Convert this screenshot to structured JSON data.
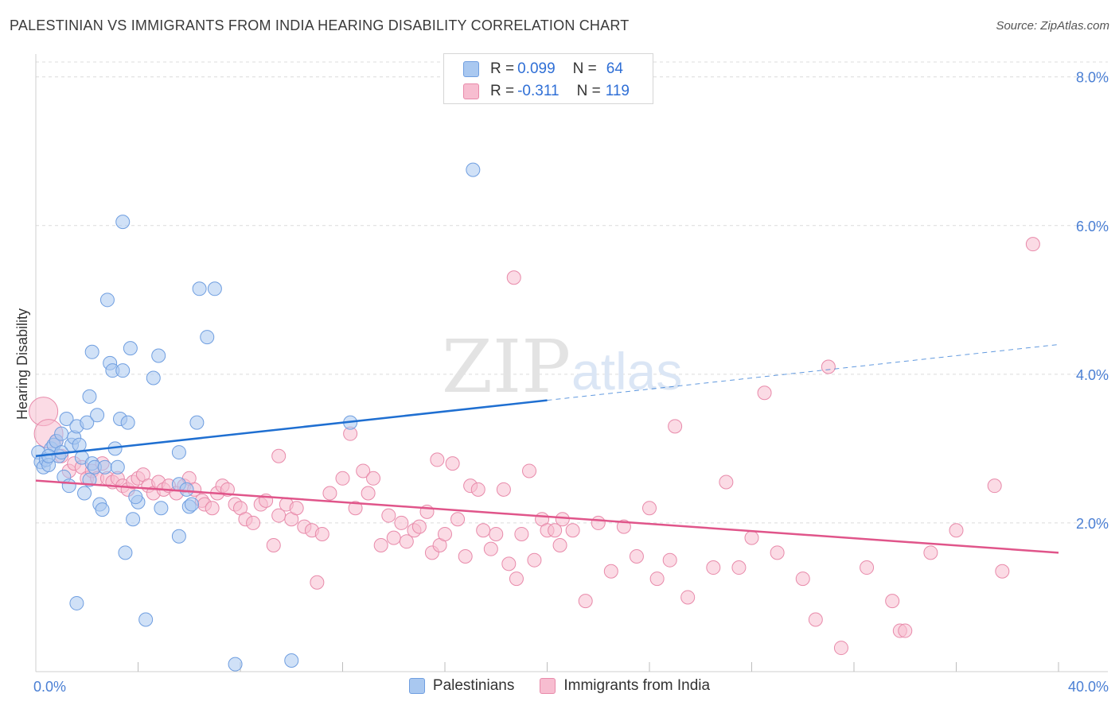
{
  "header": {
    "title": "PALESTINIAN VS IMMIGRANTS FROM INDIA HEARING DISABILITY CORRELATION CHART",
    "source": "Source: ZipAtlas.com"
  },
  "watermark": {
    "zip": "ZIP",
    "atlas": "atlas"
  },
  "legend": {
    "rows": [
      {
        "r_label": "R =",
        "r_value": "0.099",
        "n_label": "N =",
        "n_value": "64"
      },
      {
        "r_label": "R =",
        "r_value": "-0.311",
        "n_label": "N =",
        "n_value": "119"
      }
    ]
  },
  "bottom_legend": {
    "series1": "Palestinians",
    "series2": "Immigrants from India"
  },
  "colors": {
    "blue_fill": "#a9c8f0",
    "blue_stroke": "#6f9ee0",
    "blue_line": "#1f6fd1",
    "pink_fill": "#f7bdd0",
    "pink_stroke": "#e88aaa",
    "pink_line": "#e0558a",
    "axis_label": "#4a7fd4",
    "grid": "#dcdcdc"
  },
  "chart_data": {
    "type": "scatter",
    "title": "PALESTINIAN VS IMMIGRANTS FROM INDIA HEARING DISABILITY CORRELATION CHART",
    "xlabel": "",
    "ylabel": "Hearing Disability",
    "xlim": [
      0,
      40
    ],
    "ylim": [
      0,
      8.2
    ],
    "x_tick_labels": [
      {
        "value": 0,
        "label": "0.0%"
      },
      {
        "value": 40,
        "label": "40.0%"
      }
    ],
    "y_tick_labels": [
      {
        "value": 2,
        "label": "2.0%"
      },
      {
        "value": 4,
        "label": "4.0%"
      },
      {
        "value": 6,
        "label": "6.0%"
      },
      {
        "value": 8,
        "label": "8.0%"
      }
    ],
    "x_minor_ticks": [
      4,
      8,
      12,
      16,
      20,
      24,
      28,
      32,
      36,
      40
    ],
    "series": [
      {
        "name": "Palestinians",
        "r": 0.099,
        "n": 64,
        "trend": {
          "x0": 0,
          "y0": 2.9,
          "x1": 20,
          "y1": 3.65,
          "dashed_to_x": 40,
          "dashed_to_y": 4.4
        },
        "points": [
          [
            0.1,
            2.95
          ],
          [
            0.2,
            2.82
          ],
          [
            0.3,
            2.75
          ],
          [
            0.4,
            2.85
          ],
          [
            0.5,
            2.78
          ],
          [
            0.6,
            3.0
          ],
          [
            0.7,
            3.05
          ],
          [
            0.8,
            3.1
          ],
          [
            0.9,
            2.9
          ],
          [
            1.0,
            3.2
          ],
          [
            1.1,
            2.62
          ],
          [
            1.2,
            3.4
          ],
          [
            1.3,
            2.5
          ],
          [
            1.4,
            3.05
          ],
          [
            1.5,
            3.15
          ],
          [
            1.6,
            3.3
          ],
          [
            1.7,
            3.05
          ],
          [
            1.8,
            2.88
          ],
          [
            1.9,
            2.4
          ],
          [
            2.0,
            3.35
          ],
          [
            2.1,
            2.58
          ],
          [
            2.2,
            2.8
          ],
          [
            2.1,
            3.7
          ],
          [
            2.2,
            4.3
          ],
          [
            2.3,
            2.75
          ],
          [
            2.4,
            3.45
          ],
          [
            2.5,
            2.25
          ],
          [
            2.6,
            2.18
          ],
          [
            2.7,
            2.75
          ],
          [
            2.8,
            5.0
          ],
          [
            2.9,
            4.15
          ],
          [
            3.0,
            4.05
          ],
          [
            3.1,
            3.0
          ],
          [
            3.2,
            2.75
          ],
          [
            3.3,
            3.4
          ],
          [
            3.4,
            4.05
          ],
          [
            3.4,
            6.05
          ],
          [
            3.5,
            1.6
          ],
          [
            3.6,
            3.35
          ],
          [
            3.7,
            4.35
          ],
          [
            3.8,
            2.05
          ],
          [
            4.0,
            2.28
          ],
          [
            4.3,
            0.7
          ],
          [
            4.6,
            3.95
          ],
          [
            4.8,
            4.25
          ],
          [
            4.9,
            2.2
          ],
          [
            5.6,
            2.52
          ],
          [
            5.6,
            1.82
          ],
          [
            5.6,
            2.95
          ],
          [
            5.9,
            2.45
          ],
          [
            6.0,
            2.22
          ],
          [
            6.1,
            2.25
          ],
          [
            6.3,
            3.35
          ],
          [
            6.4,
            5.15
          ],
          [
            6.7,
            4.5
          ],
          [
            7.0,
            5.15
          ],
          [
            7.8,
            0.1
          ],
          [
            10.0,
            0.15
          ],
          [
            12.3,
            3.35
          ],
          [
            17.1,
            6.75
          ],
          [
            1.0,
            2.95
          ],
          [
            0.5,
            2.9
          ],
          [
            3.9,
            2.35
          ],
          [
            1.6,
            0.92
          ]
        ]
      },
      {
        "name": "Immigrants from India",
        "r": -0.311,
        "n": 119,
        "trend": {
          "x0": 0,
          "y0": 2.57,
          "x1": 40,
          "y1": 1.6
        },
        "points": [
          [
            0.3,
            3.5
          ],
          [
            0.5,
            3.2
          ],
          [
            0.8,
            3.1
          ],
          [
            1.0,
            2.9
          ],
          [
            1.3,
            2.7
          ],
          [
            1.5,
            2.8
          ],
          [
            1.8,
            2.75
          ],
          [
            2.0,
            2.6
          ],
          [
            2.2,
            2.7
          ],
          [
            2.4,
            2.6
          ],
          [
            2.6,
            2.8
          ],
          [
            2.8,
            2.6
          ],
          [
            3.0,
            2.55
          ],
          [
            3.2,
            2.6
          ],
          [
            3.4,
            2.5
          ],
          [
            3.6,
            2.45
          ],
          [
            3.8,
            2.55
          ],
          [
            4.0,
            2.6
          ],
          [
            4.2,
            2.65
          ],
          [
            4.4,
            2.5
          ],
          [
            4.6,
            2.4
          ],
          [
            4.8,
            2.55
          ],
          [
            5.0,
            2.45
          ],
          [
            5.2,
            2.5
          ],
          [
            5.5,
            2.4
          ],
          [
            5.8,
            2.5
          ],
          [
            6.0,
            2.6
          ],
          [
            6.2,
            2.45
          ],
          [
            6.5,
            2.3
          ],
          [
            6.6,
            2.25
          ],
          [
            6.9,
            2.2
          ],
          [
            7.1,
            2.4
          ],
          [
            7.3,
            2.5
          ],
          [
            7.5,
            2.45
          ],
          [
            7.8,
            2.25
          ],
          [
            8.0,
            2.2
          ],
          [
            8.2,
            2.05
          ],
          [
            8.5,
            2.0
          ],
          [
            8.8,
            2.25
          ],
          [
            9.0,
            2.3
          ],
          [
            9.3,
            1.7
          ],
          [
            9.5,
            2.1
          ],
          [
            9.8,
            2.25
          ],
          [
            10.0,
            2.05
          ],
          [
            10.2,
            2.2
          ],
          [
            10.5,
            1.95
          ],
          [
            10.8,
            1.9
          ],
          [
            11.0,
            1.2
          ],
          [
            11.2,
            1.85
          ],
          [
            11.5,
            2.4
          ],
          [
            12.0,
            2.6
          ],
          [
            12.3,
            3.2
          ],
          [
            12.5,
            2.2
          ],
          [
            12.8,
            2.7
          ],
          [
            13.0,
            2.4
          ],
          [
            13.2,
            2.6
          ],
          [
            13.5,
            1.7
          ],
          [
            13.8,
            2.1
          ],
          [
            14.0,
            1.8
          ],
          [
            14.3,
            2.0
          ],
          [
            14.5,
            1.75
          ],
          [
            14.8,
            1.9
          ],
          [
            15.0,
            1.95
          ],
          [
            15.3,
            2.15
          ],
          [
            15.5,
            1.6
          ],
          [
            15.8,
            1.7
          ],
          [
            16.0,
            1.85
          ],
          [
            16.3,
            2.8
          ],
          [
            16.5,
            2.05
          ],
          [
            16.8,
            1.55
          ],
          [
            17.0,
            2.5
          ],
          [
            17.3,
            2.45
          ],
          [
            17.5,
            1.9
          ],
          [
            17.8,
            1.65
          ],
          [
            18.0,
            1.85
          ],
          [
            18.3,
            2.45
          ],
          [
            18.5,
            1.45
          ],
          [
            18.8,
            1.25
          ],
          [
            19.0,
            1.85
          ],
          [
            19.3,
            2.7
          ],
          [
            19.5,
            1.5
          ],
          [
            19.8,
            2.05
          ],
          [
            20.0,
            1.9
          ],
          [
            20.3,
            1.9
          ],
          [
            20.5,
            1.7
          ],
          [
            21.0,
            1.9
          ],
          [
            21.5,
            0.95
          ],
          [
            22.0,
            2.0
          ],
          [
            22.5,
            1.35
          ],
          [
            23.0,
            1.95
          ],
          [
            23.5,
            1.55
          ],
          [
            24.0,
            2.2
          ],
          [
            24.3,
            1.25
          ],
          [
            24.8,
            1.5
          ],
          [
            25.0,
            3.3
          ],
          [
            25.5,
            1.0
          ],
          [
            26.5,
            1.4
          ],
          [
            27.0,
            2.55
          ],
          [
            28.0,
            1.8
          ],
          [
            29.0,
            1.6
          ],
          [
            30.0,
            1.25
          ],
          [
            30.5,
            0.7
          ],
          [
            31.0,
            4.1
          ],
          [
            31.5,
            0.32
          ],
          [
            32.5,
            1.4
          ],
          [
            33.5,
            0.95
          ],
          [
            33.8,
            0.55
          ],
          [
            34.0,
            0.55
          ],
          [
            35.0,
            1.6
          ],
          [
            36.0,
            1.9
          ],
          [
            37.5,
            2.5
          ],
          [
            37.8,
            1.35
          ],
          [
            39.0,
            5.75
          ],
          [
            18.7,
            5.3
          ],
          [
            28.5,
            3.75
          ],
          [
            20.6,
            2.05
          ],
          [
            27.5,
            1.4
          ],
          [
            15.7,
            2.85
          ],
          [
            9.5,
            2.9
          ]
        ]
      }
    ]
  }
}
